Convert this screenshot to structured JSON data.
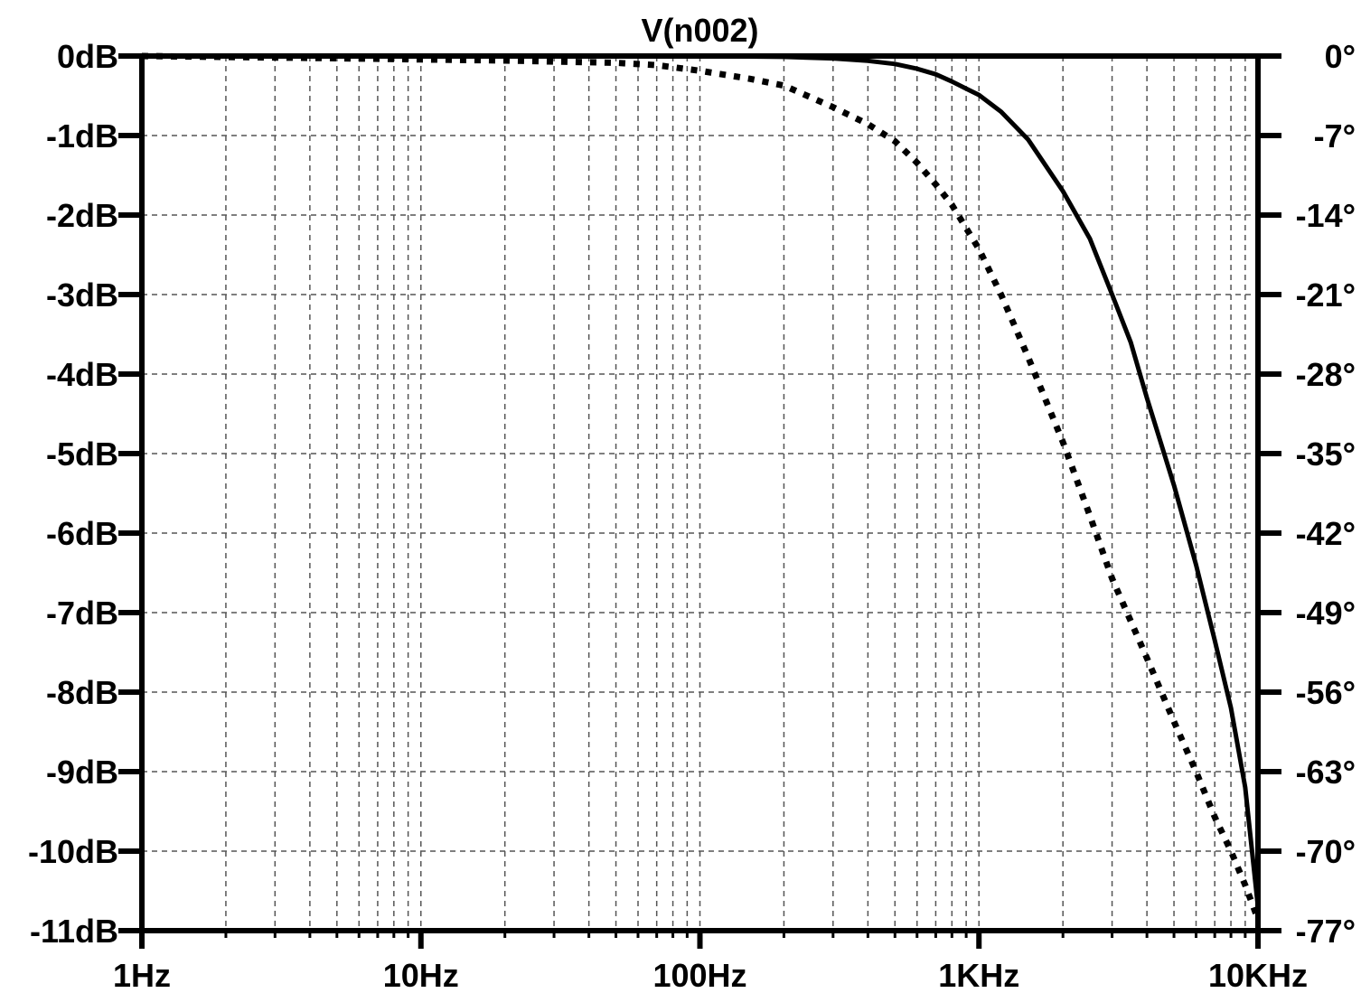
{
  "chart_data": {
    "type": "line",
    "title": "V(n002)",
    "x_scale": "log",
    "xlim": [
      1,
      10000
    ],
    "x_tick_values": [
      1,
      10,
      100,
      1000,
      10000
    ],
    "x_tick_labels": [
      "1Hz",
      "10Hz",
      "100Hz",
      "1KHz",
      "10KHz"
    ],
    "y_left": {
      "unit": "dB",
      "ylim": [
        -11,
        0
      ],
      "tick_values": [
        0,
        -1,
        -2,
        -3,
        -4,
        -5,
        -6,
        -7,
        -8,
        -9,
        -10,
        -11
      ],
      "tick_labels": [
        "0dB",
        "-1dB",
        "-2dB",
        "-3dB",
        "-4dB",
        "-5dB",
        "-6dB",
        "-7dB",
        "-8dB",
        "-9dB",
        "-10dB",
        "-11dB"
      ]
    },
    "y_right": {
      "unit": "°",
      "ylim": [
        -77,
        0
      ],
      "tick_values": [
        0,
        -7,
        -14,
        -21,
        -28,
        -35,
        -42,
        -49,
        -56,
        -63,
        -70,
        -77
      ],
      "tick_labels": [
        "0°",
        "-7°",
        "-14°",
        "-21°",
        "-28°",
        "-35°",
        "-42°",
        "-49°",
        "-56°",
        "-63°",
        "-70°",
        "-77°"
      ]
    },
    "grid": true,
    "series": [
      {
        "style": "solid",
        "axis": "left",
        "x": [
          1,
          10,
          100,
          200,
          300,
          400,
          500,
          600,
          700,
          800,
          900,
          1000,
          1200,
          1500,
          2000,
          2500,
          3000,
          3500,
          4000,
          5000,
          6000,
          7000,
          8000,
          9000,
          10000
        ],
        "y": [
          0,
          0,
          0,
          -0.01,
          -0.03,
          -0.06,
          -0.1,
          -0.16,
          -0.23,
          -0.32,
          -0.41,
          -0.49,
          -0.7,
          -1.05,
          -1.7,
          -2.3,
          -3.0,
          -3.6,
          -4.3,
          -5.4,
          -6.4,
          -7.35,
          -8.2,
          -9.2,
          -10.7
        ]
      },
      {
        "style": "dotted",
        "axis": "right",
        "x": [
          1,
          5,
          10,
          20,
          50,
          70,
          100,
          150,
          200,
          300,
          400,
          500,
          600,
          700,
          800,
          1000,
          1200,
          1500,
          2000,
          2500,
          3000,
          4000,
          5000,
          6000,
          7000,
          8000,
          9000,
          10000
        ],
        "y": [
          0,
          -0.2,
          -0.3,
          -0.4,
          -0.6,
          -0.8,
          -1.3,
          -2.0,
          -2.6,
          -4.5,
          -6.0,
          -7.5,
          -9.4,
          -11.3,
          -13.1,
          -17.0,
          -21.0,
          -26.5,
          -34.0,
          -40.5,
          -46.0,
          -53.0,
          -58.6,
          -63.0,
          -67.0,
          -70.0,
          -73.0,
          -76.0
        ]
      }
    ]
  }
}
